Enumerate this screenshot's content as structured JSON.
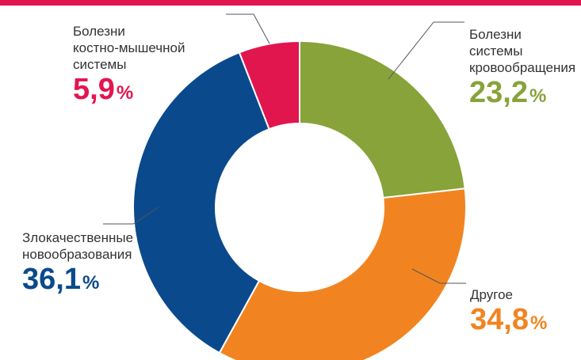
{
  "chart_data": {
    "type": "pie",
    "donut": true,
    "slices": [
      {
        "key": "circulatory",
        "label_lines": [
          "Болезни",
          "системы",
          "кровообращения"
        ],
        "value": 23.2,
        "value_text": "23,2",
        "color": "#87a33a"
      },
      {
        "key": "other",
        "label_lines": [
          "Другое"
        ],
        "value": 34.8,
        "value_text": "34,8",
        "color": "#f18420"
      },
      {
        "key": "oncology",
        "label_lines": [
          "Злокачественные",
          "новообразования"
        ],
        "value": 36.1,
        "value_text": "36,1",
        "color": "#0a4a8c"
      },
      {
        "key": "musculoskeletal",
        "label_lines": [
          "Болезни",
          "костно-мышечной",
          "системы"
        ],
        "value": 5.9,
        "value_text": "5,9",
        "color": "#e2164f"
      }
    ],
    "percent_sign": "%"
  },
  "colors": {
    "top_bar": "#e2164f",
    "label_text": "#333333"
  }
}
